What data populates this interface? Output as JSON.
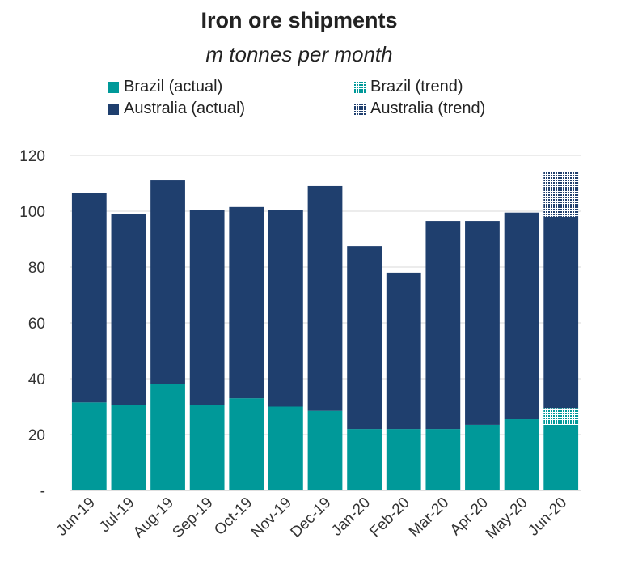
{
  "chart_data": {
    "type": "bar",
    "stacked": true,
    "title": "Iron ore shipments",
    "subtitle": "m tonnes per month",
    "categories": [
      "Jun-19",
      "Jul-19",
      "Aug-19",
      "Sep-19",
      "Oct-19",
      "Nov-19",
      "Dec-19",
      "Jan-20",
      "Feb-20",
      "Mar-20",
      "Apr-20",
      "May-20",
      "Jun-20"
    ],
    "series": [
      {
        "name": "Brazil (actual)",
        "color": "#009999",
        "pattern": "solid",
        "values": [
          31.5,
          30.5,
          38,
          30.5,
          33,
          30,
          28.5,
          22,
          22,
          22,
          23.5,
          25.5,
          23.5
        ]
      },
      {
        "name": "Australia (actual)",
        "color": "#1f3f6e",
        "pattern": "solid",
        "values": [
          75,
          68.5,
          73,
          70,
          68.5,
          70.5,
          80.5,
          65.5,
          56,
          74.5,
          73,
          74,
          68.5
        ]
      },
      {
        "name": "Brazil (trend)",
        "color": "#009999",
        "pattern": "dotted",
        "values": [
          0,
          0,
          0,
          0,
          0,
          0,
          0,
          0,
          0,
          0,
          0,
          0,
          6
        ]
      },
      {
        "name": "Australia (trend)",
        "color": "#1f3f6e",
        "pattern": "dotted",
        "values": [
          0,
          0,
          0,
          0,
          0,
          0,
          0,
          0,
          0,
          0,
          0,
          0,
          16
        ]
      }
    ],
    "stack_order": [
      "Brazil (actual)",
      "Brazil (trend)",
      "Australia (actual)",
      "Australia (trend)"
    ],
    "yticks": [
      "-",
      "20",
      "40",
      "60",
      "80",
      "100",
      "120"
    ],
    "ylim": [
      0,
      120
    ],
    "grid": true,
    "legend_position": "top"
  }
}
